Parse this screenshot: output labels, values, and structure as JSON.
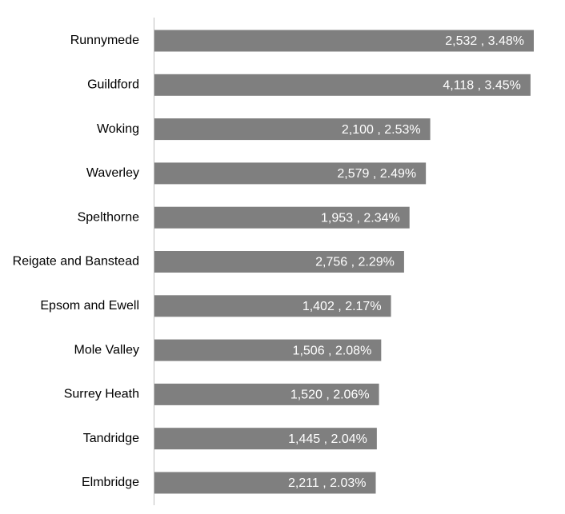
{
  "chart_data": {
    "type": "bar",
    "orientation": "horizontal",
    "categories": [
      "Runnymede",
      "Guildford",
      "Woking",
      "Waverley",
      "Spelthorne",
      "Reigate and Banstead",
      "Epsom and Ewell",
      "Mole Valley",
      "Surrey Heath",
      "Tandridge",
      "Elmbridge"
    ],
    "values": [
      3.48,
      3.45,
      2.53,
      2.49,
      2.34,
      2.29,
      2.17,
      2.08,
      2.06,
      2.04,
      2.03
    ],
    "value_labels": [
      "2,532 , 3.48%",
      "4,118 , 3.45%",
      "2,100 , 2.53%",
      "2,579 , 2.49%",
      "1,953 , 2.34%",
      "2,756 , 2.29%",
      "1,402 , 2.17%",
      "1,506 , 2.08%",
      "1,520 , 2.06%",
      "1,445 , 2.04%",
      "2,211 , 2.03%"
    ],
    "color": "#7f7f7f"
  }
}
